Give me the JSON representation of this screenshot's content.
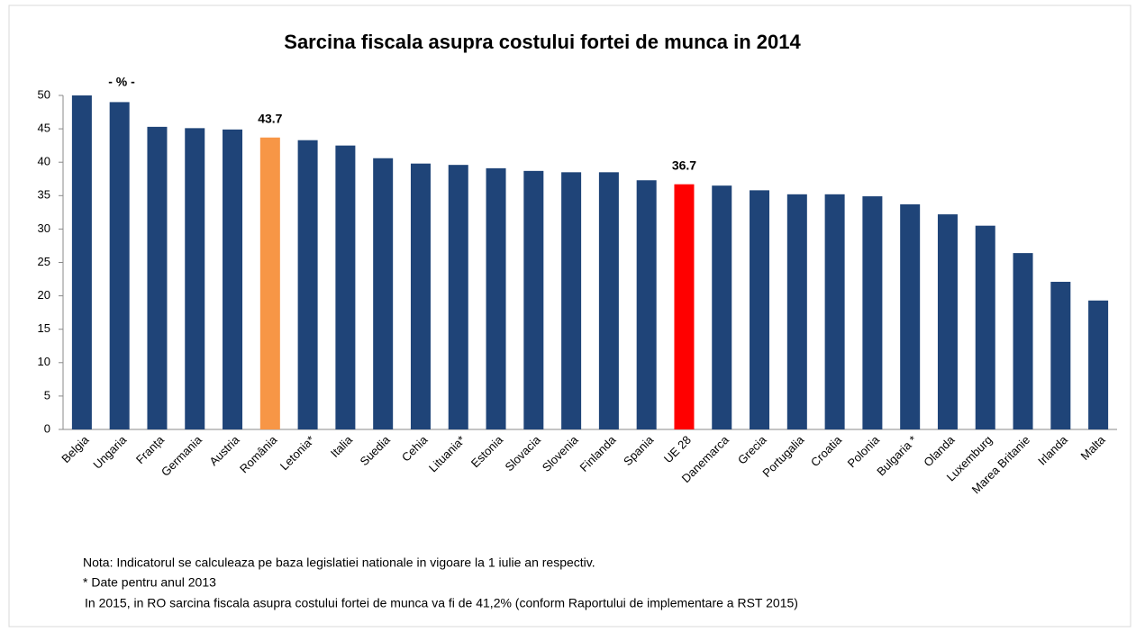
{
  "chart_data": {
    "type": "bar",
    "title": "Sarcina fiscala asupra costului fortei de munca in 2014",
    "subtitle": "- % -",
    "categories": [
      "Belgia",
      "Ungaria",
      "Franța",
      "Germania",
      "Austria",
      "România",
      "Letonia*",
      "Italia",
      "Suedia",
      "Cehia",
      "Lituania*",
      "Estonia",
      "Slovacia",
      "Slovenia",
      "Finlanda",
      "Spania",
      "UE 28",
      "Danemarca",
      "Grecia",
      "Portugalia",
      "Croatia",
      "Polonia",
      "Bulgaria *",
      "Olanda",
      "Luxemburg",
      "Marea Britanie",
      "Irlanda",
      "Malta"
    ],
    "values": [
      50.0,
      49.0,
      45.3,
      45.1,
      44.9,
      43.7,
      43.3,
      42.5,
      40.6,
      39.8,
      39.6,
      39.1,
      38.7,
      38.5,
      38.5,
      37.3,
      36.7,
      36.5,
      35.8,
      35.2,
      35.2,
      34.9,
      33.7,
      32.2,
      30.5,
      26.4,
      22.1,
      19.3
    ],
    "value_labels": [
      null,
      null,
      null,
      null,
      null,
      "43.7",
      null,
      null,
      null,
      null,
      null,
      null,
      null,
      null,
      null,
      null,
      "36.7",
      null,
      null,
      null,
      null,
      null,
      null,
      null,
      null,
      null,
      null,
      null
    ],
    "colors": [
      "#1f4478",
      "#1f4478",
      "#1f4478",
      "#1f4478",
      "#1f4478",
      "#f79646",
      "#1f4478",
      "#1f4478",
      "#1f4478",
      "#1f4478",
      "#1f4478",
      "#1f4478",
      "#1f4478",
      "#1f4478",
      "#1f4478",
      "#1f4478",
      "#ff0000",
      "#1f4478",
      "#1f4478",
      "#1f4478",
      "#1f4478",
      "#1f4478",
      "#1f4478",
      "#1f4478",
      "#1f4478",
      "#1f4478",
      "#1f4478",
      "#1f4478"
    ],
    "ylim": [
      0,
      50
    ],
    "yticks": [
      0,
      5,
      10,
      15,
      20,
      25,
      30,
      35,
      40,
      45,
      50
    ],
    "grid": false,
    "notes": [
      "Nota: Indicatorul se calculeaza pe baza legislatiei nationale in vigoare la 1 iulie an respectiv.",
      "* Date pentru anul 2013",
      "In 2015, in RO sarcina fiscala asupra costului fortei de munca va fi de 41,2% (conform  Raportului de implementare a RST 2015)"
    ]
  }
}
